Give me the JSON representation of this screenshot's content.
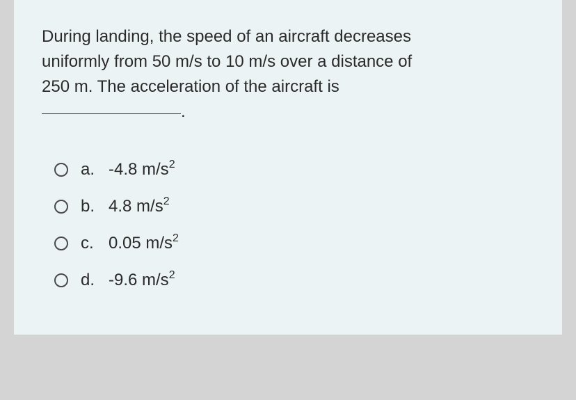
{
  "card": {
    "background_color": "#ecf3f4",
    "text_color": "#2a2a2a",
    "border_color": "#4a4a4a",
    "font_size": 24
  },
  "question": {
    "line1": "During landing, the speed of an aircraft decreases",
    "line2": "uniformly from 50 m/s to 10 m/s over a distance of",
    "line3": "250 m. The acceleration of the aircraft is",
    "blank_suffix": "."
  },
  "options": [
    {
      "letter": "a.",
      "value": "-4.8 m/s",
      "exponent": "2"
    },
    {
      "letter": "b.",
      "value": "4.8 m/s",
      "exponent": "2"
    },
    {
      "letter": "c.",
      "value": "0.05 m/s",
      "exponent": "2"
    },
    {
      "letter": "d.",
      "value": "-9.6 m/s",
      "exponent": "2"
    }
  ]
}
